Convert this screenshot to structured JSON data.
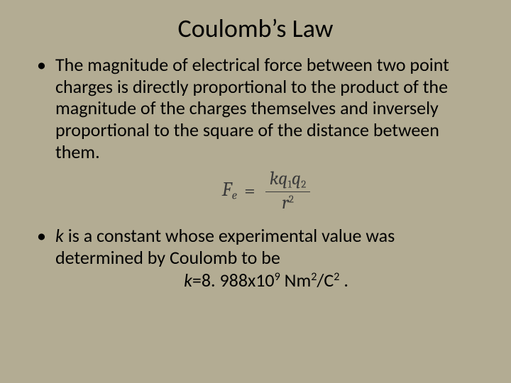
{
  "background_color": "#b3ac93",
  "text_color": "#000000",
  "title": "Coulomb’s Law",
  "title_fontsize": 36,
  "body_fontsize": 26,
  "bullet1": "The magnitude of electrical force between two point charges is directly proportional to the product of the magnitude of the charges themselves and inversely proportional to the square of the distance between them.",
  "equation": {
    "lhs_sym": "F",
    "lhs_sub": "e",
    "equals": "=",
    "num_k": "k",
    "num_q": "q",
    "num_sub1": "1",
    "num_sub2": "2",
    "den_r": "r",
    "den_sup": "2",
    "color": "#3a3a3a",
    "font": "Cambria"
  },
  "bullet2_prefix_italic": "k",
  "bullet2_rest": " is a constant whose experimental value was determined by Coulomb to be",
  "k_value_line_prefix": "k",
  "k_value_line_eq": "=8. 988x10",
  "k_value_line_exp1": "9",
  "k_value_line_mid": " Nm",
  "k_value_line_exp2": "2",
  "k_value_line_slashC": "/C",
  "k_value_line_exp3": "2",
  "k_value_line_tail": "  ."
}
